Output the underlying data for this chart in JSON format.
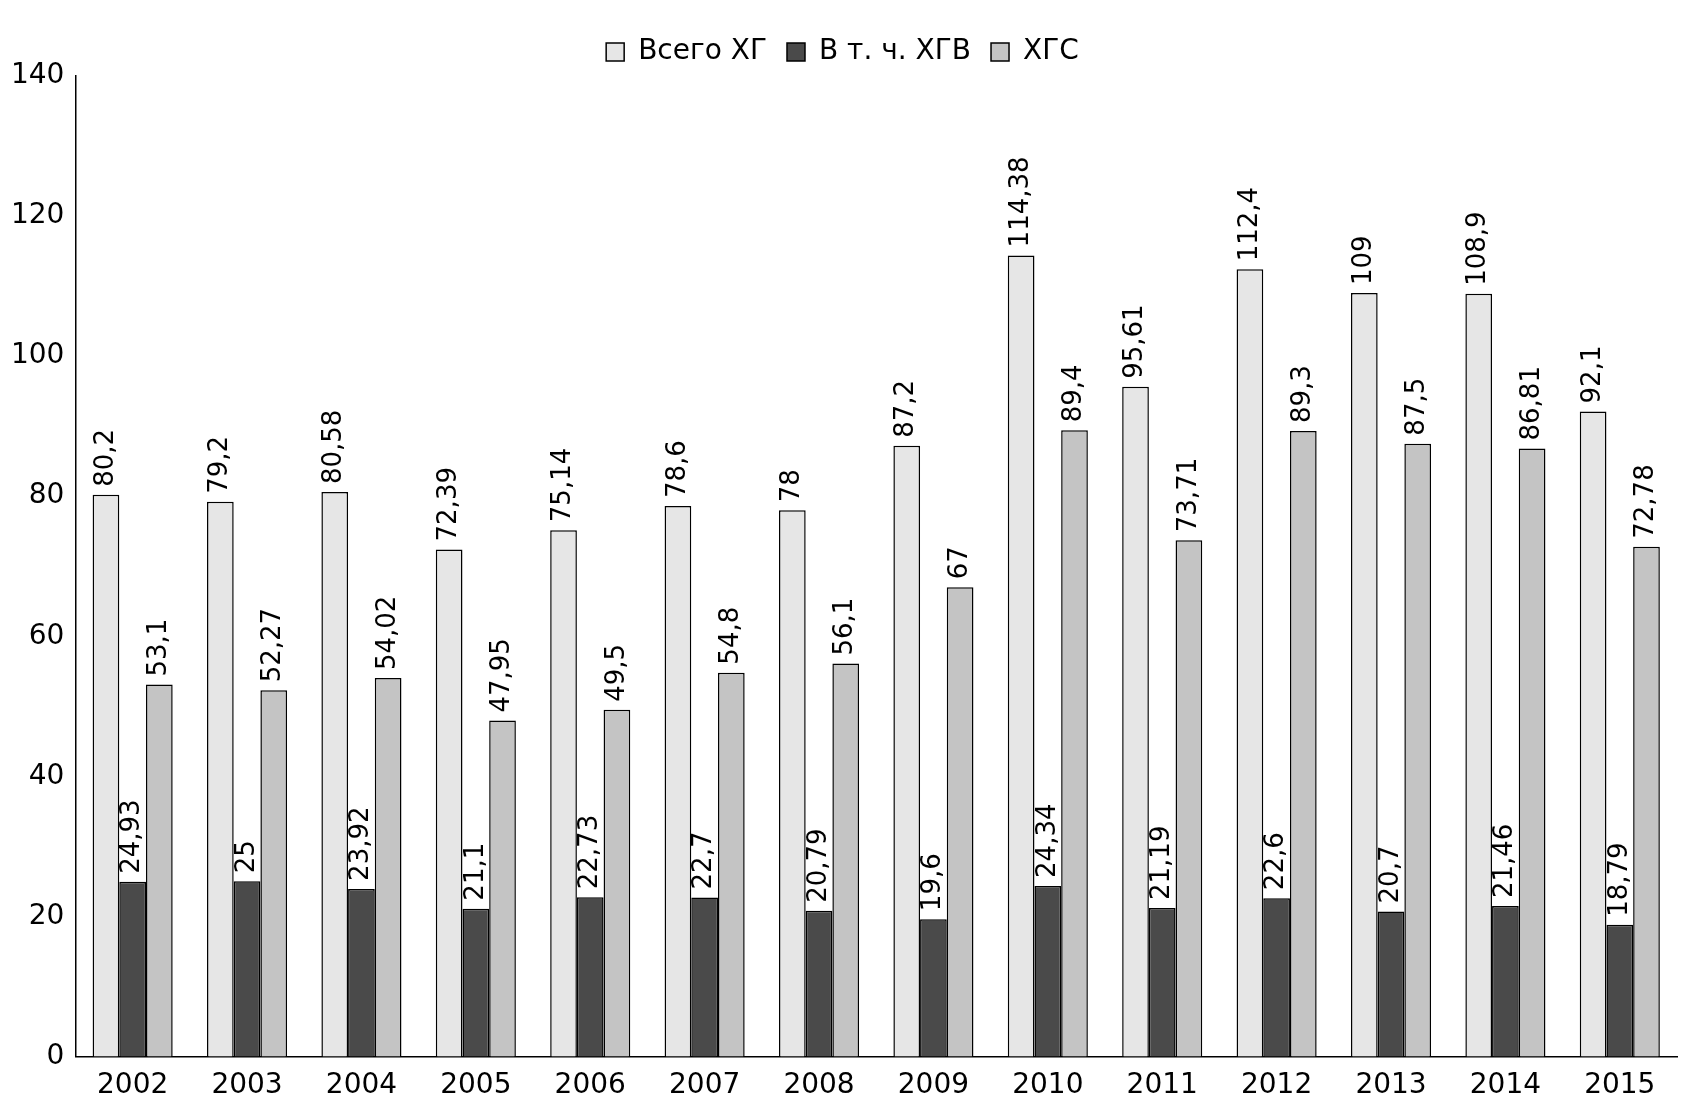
{
  "chart_data": {
    "type": "bar",
    "categories": [
      "2002",
      "2003",
      "2004",
      "2005",
      "2006",
      "2007",
      "2008",
      "2009",
      "2010",
      "2011",
      "2012",
      "2013",
      "2014",
      "2015"
    ],
    "series": [
      {
        "name": "Всего ХГ",
        "color": "#e6e6e6",
        "values": [
          80.2,
          79.2,
          80.58,
          72.39,
          75.14,
          78.6,
          78,
          87.2,
          114.38,
          95.61,
          112.4,
          109,
          108.9,
          92.1
        ],
        "value_labels": [
          "80,2",
          "79,2",
          "80,58",
          "72,39",
          "75,14",
          "78,6",
          "78",
          "87,2",
          "114,38",
          "95,61",
          "112,4",
          "109",
          "108,9",
          "92,1"
        ]
      },
      {
        "name": "В т. ч. ХГВ",
        "color": "#4a4a4a",
        "values": [
          24.93,
          25,
          23.92,
          21.1,
          22.73,
          22.7,
          20.79,
          19.6,
          24.34,
          21.19,
          22.6,
          20.7,
          21.46,
          18.79
        ],
        "value_labels": [
          "24,93",
          "25",
          "23,92",
          "21,1",
          "22,73",
          "22,7",
          "20,79",
          "19,6",
          "24,34",
          "21,19",
          "22,6",
          "20,7",
          "21,46",
          "18,79"
        ]
      },
      {
        "name": "ХГС",
        "color": "#c4c4c4",
        "values": [
          53.1,
          52.27,
          54.02,
          47.95,
          49.5,
          54.8,
          56.1,
          67,
          89.4,
          73.71,
          89.3,
          87.5,
          86.81,
          72.78
        ],
        "value_labels": [
          "53,1",
          "52,27",
          "54,02",
          "47,95",
          "49,5",
          "54,8",
          "56,1",
          "67",
          "89,4",
          "73,71",
          "89,3",
          "87,5",
          "86,81",
          "72,78"
        ]
      }
    ],
    "ylim": [
      0,
      140
    ],
    "yticks": [
      0,
      20,
      40,
      60,
      80,
      100,
      120,
      140
    ],
    "grid": false,
    "legend": "top"
  }
}
